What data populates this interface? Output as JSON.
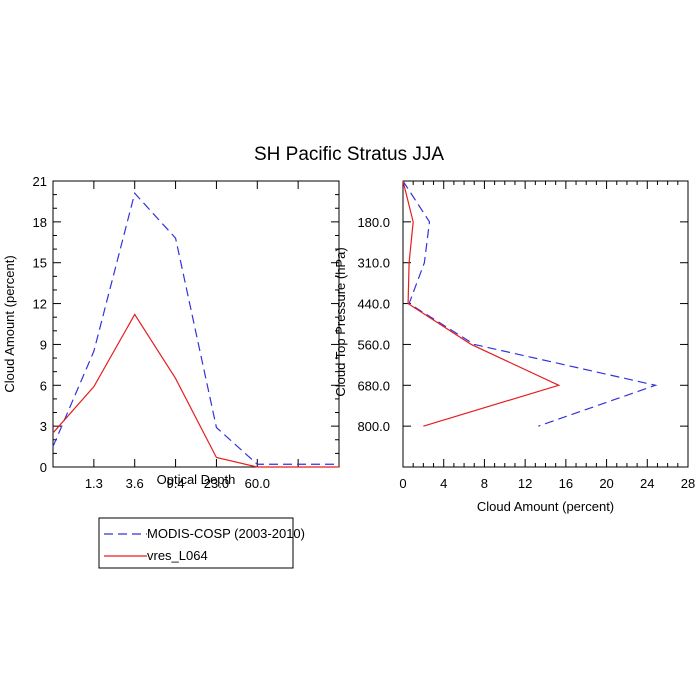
{
  "title": "SH Pacific Stratus JJA",
  "legend": {
    "entries": [
      {
        "label": "MODIS-COSP (2003-2010)",
        "color": "#3333dd",
        "dash": "dashed"
      },
      {
        "label": "vres_L064",
        "color": "#e61e1e",
        "dash": "solid"
      }
    ]
  },
  "chart_data": [
    {
      "type": "line",
      "title": "",
      "xlabel": "Optical Depth",
      "ylabel": "Cloud Amount (percent)",
      "x_tick_labels": [
        "1.3",
        "3.6",
        "9.4",
        "23.0",
        "60.0"
      ],
      "x_bins": 7,
      "ylim": [
        0,
        21
      ],
      "yticks": [
        "0",
        "3",
        "6",
        "9",
        "12",
        "15",
        "18",
        "21"
      ],
      "series": [
        {
          "name": "MODIS-COSP (2003-2010)",
          "values": [
            1.5,
            8.5,
            20.1,
            16.8,
            2.9,
            0.2
          ],
          "color": "#3333dd"
        },
        {
          "name": "vres_L064",
          "values": [
            2.5,
            5.9,
            11.2,
            6.5,
            0.7,
            0.0
          ],
          "color": "#e61e1e"
        }
      ]
    },
    {
      "type": "line",
      "title": "",
      "xlabel": "Cloud Amount (percent)",
      "ylabel": "Cloud Top Pressure (hPa)",
      "xlim": [
        0,
        28
      ],
      "xticks": [
        "0",
        "4",
        "8",
        "12",
        "16",
        "20",
        "24",
        "28"
      ],
      "y_tick_labels": [
        "180.0",
        "310.0",
        "440.0",
        "560.0",
        "680.0",
        "800.0"
      ],
      "y_bins": 7,
      "series": [
        {
          "name": "MODIS-COSP (2003-2010)",
          "values": [
            0.0,
            2.6,
            2.1,
            0.6,
            7.0,
            24.8,
            13.3
          ],
          "color": "#3333dd"
        },
        {
          "name": "vres_L064",
          "values": [
            0.0,
            1.0,
            0.6,
            0.5,
            6.7,
            15.3,
            2.0
          ],
          "color": "#e61e1e"
        }
      ]
    }
  ]
}
